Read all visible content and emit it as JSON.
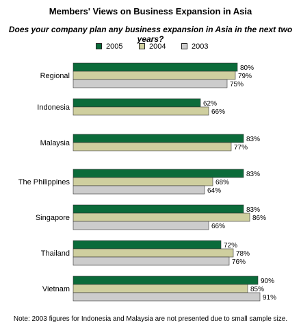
{
  "chart_data": {
    "type": "bar",
    "orientation": "horizontal",
    "title": "Members' Views on Business Expansion in Asia",
    "subtitle": "Does your company plan any business expansion in Asia in the next two years?",
    "categories": [
      "Regional",
      "Indonesia",
      "Malaysia",
      "The Philippines",
      "Singapore",
      "Thailand",
      "Vietnam"
    ],
    "series": [
      {
        "name": "2005",
        "color": "#0b6b3a",
        "values": [
          80,
          62,
          83,
          83,
          83,
          72,
          90
        ],
        "labels": [
          "80%",
          "62%",
          "83%",
          "83%",
          "83%",
          "72%",
          "90%"
        ]
      },
      {
        "name": "2004",
        "color": "#cfcf9f",
        "values": [
          79,
          66,
          77,
          68,
          86,
          78,
          85
        ],
        "labels": [
          "79%",
          "66%",
          "77%",
          "68%",
          "86%",
          "78%",
          "85%"
        ]
      },
      {
        "name": "2003",
        "color": "#cccccc",
        "values": [
          75,
          null,
          null,
          64,
          66,
          76,
          91
        ],
        "labels": [
          "75%",
          "",
          "",
          "64%",
          "66%",
          "76%",
          "91%"
        ]
      }
    ],
    "xlim": [
      0,
      100
    ],
    "legend_position": "top-center",
    "grid": false,
    "note": "Note: 2003 figures for Indonesia and Malaysia are not presented due to small sample size."
  }
}
